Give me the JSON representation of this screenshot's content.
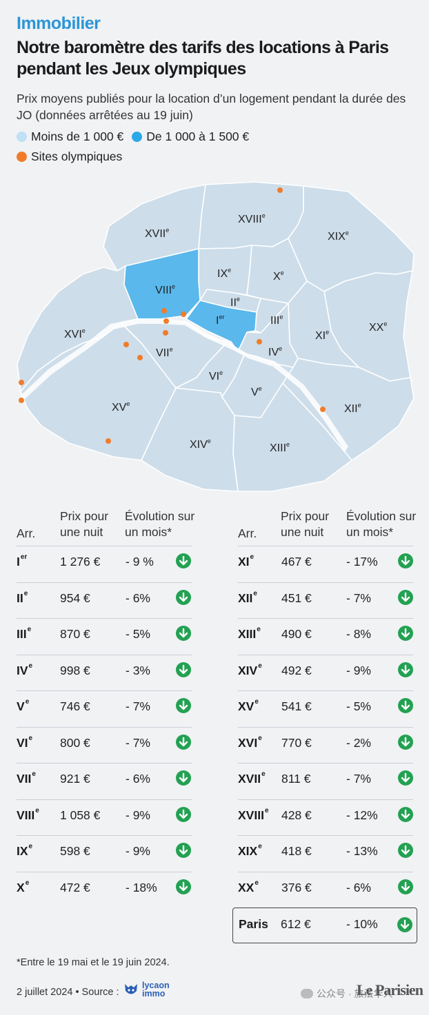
{
  "header": {
    "kicker": "Immobilier",
    "title": "Notre baromètre des tarifs des locations à Paris pendant les Jeux olympiques",
    "subtitle": "Prix moyens publiés pour la location d’un logement pendant la durée des JO (données arrêtées au 19 juin)"
  },
  "legend": {
    "low": "Moins de 1 000 €",
    "mid": "De 1 000 à 1 500 €",
    "sites": "Sites olympiques"
  },
  "colors": {
    "accent": "#2c95d6",
    "low": "#cdddea",
    "mid": "#5ab8ec",
    "sites": "#f07c2a",
    "arrow": "#23a152"
  },
  "map": {
    "districts": [
      {
        "id": "I",
        "num": "I",
        "sup": "er",
        "category": "mid"
      },
      {
        "id": "II",
        "num": "II",
        "sup": "e",
        "category": "low"
      },
      {
        "id": "III",
        "num": "III",
        "sup": "e",
        "category": "low"
      },
      {
        "id": "IV",
        "num": "IV",
        "sup": "e",
        "category": "low"
      },
      {
        "id": "V",
        "num": "V",
        "sup": "e",
        "category": "low"
      },
      {
        "id": "VI",
        "num": "VI",
        "sup": "e",
        "category": "low"
      },
      {
        "id": "VII",
        "num": "VII",
        "sup": "e",
        "category": "low"
      },
      {
        "id": "VIII",
        "num": "VIII",
        "sup": "e",
        "category": "mid"
      },
      {
        "id": "IX",
        "num": "IX",
        "sup": "e",
        "category": "low"
      },
      {
        "id": "X",
        "num": "X",
        "sup": "e",
        "category": "low"
      },
      {
        "id": "XI",
        "num": "XI",
        "sup": "e",
        "category": "low"
      },
      {
        "id": "XII",
        "num": "XII",
        "sup": "e",
        "category": "low"
      },
      {
        "id": "XIII",
        "num": "XIII",
        "sup": "e",
        "category": "low"
      },
      {
        "id": "XIV",
        "num": "XIV",
        "sup": "e",
        "category": "low"
      },
      {
        "id": "XV",
        "num": "XV",
        "sup": "e",
        "category": "low"
      },
      {
        "id": "XVI",
        "num": "XVI",
        "sup": "e",
        "category": "low"
      },
      {
        "id": "XVII",
        "num": "XVII",
        "sup": "e",
        "category": "low"
      },
      {
        "id": "XVIII",
        "num": "XVIII",
        "sup": "e",
        "category": "low"
      },
      {
        "id": "XIX",
        "num": "XIX",
        "sup": "e",
        "category": "low"
      },
      {
        "id": "XX",
        "num": "XX",
        "sup": "e",
        "category": "low"
      }
    ]
  },
  "chart_data": {
    "type": "table",
    "columns": [
      "Arr.",
      "Prix pour une nuit",
      "Évolution sur un mois*"
    ],
    "rows_left": [
      {
        "num": "I",
        "sup": "er",
        "price": "1 276 €",
        "evolution": "- 9 %"
      },
      {
        "num": "II",
        "sup": "e",
        "price": "954 €",
        "evolution": "- 6%"
      },
      {
        "num": "III",
        "sup": "e",
        "price": "870 €",
        "evolution": "- 5%"
      },
      {
        "num": "IV",
        "sup": "e",
        "price": "998 €",
        "evolution": "- 3%"
      },
      {
        "num": "V",
        "sup": "e",
        "price": "746 €",
        "evolution": "- 7%"
      },
      {
        "num": "VI",
        "sup": "e",
        "price": "800 €",
        "evolution": "- 7%"
      },
      {
        "num": "VII",
        "sup": "e",
        "price": "921 €",
        "evolution": "- 6%"
      },
      {
        "num": "VIII",
        "sup": "e",
        "price": "1 058 €",
        "evolution": "- 9%"
      },
      {
        "num": "IX",
        "sup": "e",
        "price": "598 €",
        "evolution": "- 9%"
      },
      {
        "num": "X",
        "sup": "e",
        "price": "472 €",
        "evolution": "- 18%"
      }
    ],
    "rows_right": [
      {
        "num": "XI",
        "sup": "e",
        "price": "467 €",
        "evolution": "- 17%"
      },
      {
        "num": "XII",
        "sup": "e",
        "price": "451 €",
        "evolution": "- 7%"
      },
      {
        "num": "XIII",
        "sup": "e",
        "price": "490 €",
        "evolution": "- 8%"
      },
      {
        "num": "XIV",
        "sup": "e",
        "price": "492 €",
        "evolution": "- 9%"
      },
      {
        "num": "XV",
        "sup": "e",
        "price": "541 €",
        "evolution": "- 5%"
      },
      {
        "num": "XVI",
        "sup": "e",
        "price": "770 €",
        "evolution": "- 2%"
      },
      {
        "num": "XVII",
        "sup": "e",
        "price": "811 €",
        "evolution": "- 7%"
      },
      {
        "num": "XVIII",
        "sup": "e",
        "price": "428 €",
        "evolution": "- 12%"
      },
      {
        "num": "XIX",
        "sup": "e",
        "price": "418 €",
        "evolution": "- 13%"
      },
      {
        "num": "XX",
        "sup": "e",
        "price": "376 €",
        "evolution": "- 6%"
      }
    ],
    "total": {
      "label": "Paris",
      "price": "612 €",
      "evolution": "- 10%"
    }
  },
  "footer": {
    "note": "*Entre le 19 mai et le 19 juin 2024.",
    "source": "2 juillet 2024 • Source :",
    "source_brand_1": "lycaon",
    "source_brand_2": "immo",
    "logo": "Le Parisien",
    "watermark": "公众号 · 旅法华人"
  }
}
